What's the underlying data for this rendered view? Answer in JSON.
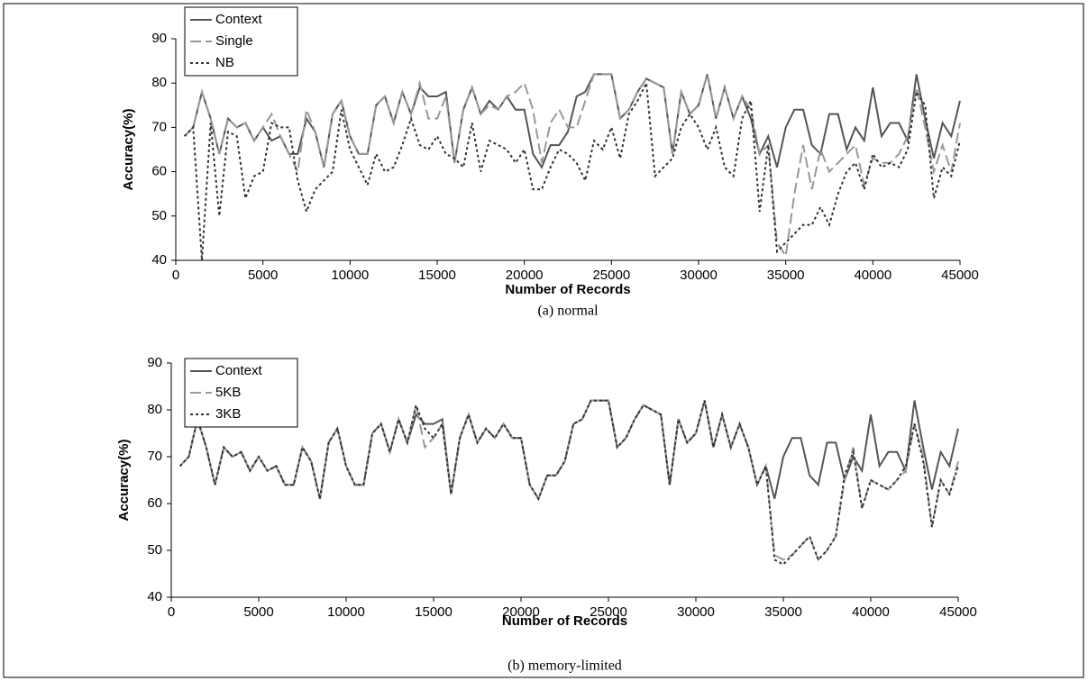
{
  "chart_data": [
    {
      "type": "line",
      "caption": "(a) normal",
      "xlabel": "Number of Records",
      "ylabel": "Accuracy(%)",
      "xlim": [
        0,
        45000
      ],
      "xticks": [
        0,
        5000,
        10000,
        15000,
        20000,
        25000,
        30000,
        35000,
        40000,
        45000
      ],
      "ylim": [
        40,
        90
      ],
      "yticks": [
        40,
        50,
        60,
        70,
        80,
        90
      ],
      "grid": false,
      "legend": "top-left",
      "x": [
        500,
        1000,
        1500,
        2000,
        2500,
        3000,
        3500,
        4000,
        4500,
        5000,
        5500,
        6000,
        6500,
        7000,
        7500,
        8000,
        8500,
        9000,
        9500,
        10000,
        10500,
        11000,
        11500,
        12000,
        12500,
        13000,
        13500,
        14000,
        14500,
        15000,
        15500,
        16000,
        16500,
        17000,
        17500,
        18000,
        18500,
        19000,
        19500,
        20000,
        20500,
        21000,
        21500,
        22000,
        22500,
        23000,
        23500,
        24000,
        24500,
        25000,
        25500,
        26000,
        26500,
        27000,
        27500,
        28000,
        28500,
        29000,
        29500,
        30000,
        30500,
        31000,
        31500,
        32000,
        32500,
        33000,
        33500,
        34000,
        34500,
        35000,
        35500,
        36000,
        36500,
        37000,
        37500,
        38000,
        38500,
        39000,
        39500,
        40000,
        40500,
        41000,
        41500,
        42000,
        42500,
        43000,
        43500,
        44000,
        44500,
        45000
      ],
      "series": [
        {
          "name": "Context",
          "color": "#555555",
          "style": "solid",
          "values": [
            68,
            70,
            78,
            72,
            64,
            72,
            70,
            71,
            67,
            70,
            67,
            68,
            64,
            64,
            72,
            69,
            61,
            73,
            76,
            68,
            64,
            64,
            75,
            77,
            71,
            78,
            73,
            79,
            77,
            77,
            78,
            62,
            74,
            79,
            73,
            76,
            74,
            77,
            74,
            74,
            64,
            61,
            66,
            66,
            69,
            77,
            78,
            82,
            82,
            82,
            72,
            74,
            78,
            81,
            80,
            79,
            64,
            78,
            73,
            75,
            82,
            72,
            79,
            72,
            77,
            72,
            64,
            68,
            61,
            70,
            74,
            74,
            66,
            64,
            73,
            73,
            65,
            70,
            67,
            79,
            68,
            71,
            71,
            67,
            82,
            72,
            63,
            71,
            68,
            76
          ]
        },
        {
          "name": "Single",
          "color": "#999999",
          "style": "dashed",
          "values": [
            68,
            70,
            78,
            72,
            64,
            72,
            70,
            71,
            67,
            70,
            73,
            68,
            64,
            60,
            74,
            69,
            61,
            73,
            76,
            68,
            64,
            64,
            75,
            77,
            71,
            78,
            73,
            80,
            72,
            72,
            77,
            62,
            74,
            79,
            73,
            75,
            74,
            77,
            78,
            80,
            74,
            62,
            71,
            74,
            70,
            70,
            76,
            82,
            82,
            82,
            72,
            74,
            78,
            81,
            80,
            79,
            64,
            78,
            73,
            75,
            82,
            72,
            79,
            72,
            77,
            74,
            64,
            66,
            44,
            41,
            55,
            66,
            56,
            65,
            60,
            62,
            64,
            66,
            57,
            63,
            62,
            62,
            64,
            68,
            79,
            70,
            60,
            66,
            60,
            71
          ]
        },
        {
          "name": "NB",
          "color": "#333333",
          "style": "dotted",
          "values": [
            68,
            70,
            40,
            71,
            50,
            69,
            68,
            54,
            59,
            60,
            71,
            70,
            70,
            58,
            51,
            56,
            58,
            60,
            74,
            65,
            61,
            57,
            64,
            60,
            61,
            66,
            72,
            66,
            65,
            68,
            64,
            63,
            61,
            71,
            60,
            67,
            66,
            65,
            62,
            65,
            56,
            56,
            61,
            65,
            64,
            62,
            58,
            67,
            65,
            70,
            63,
            73,
            76,
            80,
            59,
            61,
            63,
            70,
            73,
            70,
            65,
            70,
            61,
            59,
            72,
            76,
            51,
            66,
            42,
            44,
            46,
            48,
            48,
            52,
            48,
            55,
            60,
            62,
            56,
            64,
            61,
            62,
            61,
            65,
            78,
            75,
            54,
            61,
            59,
            67
          ]
        }
      ]
    },
    {
      "type": "line",
      "caption": "(b) memory-limited",
      "xlabel": "Number of Records",
      "ylabel": "Accuracy(%)",
      "xlim": [
        0,
        45000
      ],
      "xticks": [
        0,
        5000,
        10000,
        15000,
        20000,
        25000,
        30000,
        35000,
        40000,
        45000
      ],
      "ylim": [
        40,
        90
      ],
      "yticks": [
        40,
        50,
        60,
        70,
        80,
        90
      ],
      "grid": false,
      "legend": "top-left",
      "x": [
        500,
        1000,
        1500,
        2000,
        2500,
        3000,
        3500,
        4000,
        4500,
        5000,
        5500,
        6000,
        6500,
        7000,
        7500,
        8000,
        8500,
        9000,
        9500,
        10000,
        10500,
        11000,
        11500,
        12000,
        12500,
        13000,
        13500,
        14000,
        14500,
        15000,
        15500,
        16000,
        16500,
        17000,
        17500,
        18000,
        18500,
        19000,
        19500,
        20000,
        20500,
        21000,
        21500,
        22000,
        22500,
        23000,
        23500,
        24000,
        24500,
        25000,
        25500,
        26000,
        26500,
        27000,
        27500,
        28000,
        28500,
        29000,
        29500,
        30000,
        30500,
        31000,
        31500,
        32000,
        32500,
        33000,
        33500,
        34000,
        34500,
        35000,
        35500,
        36000,
        36500,
        37000,
        37500,
        38000,
        38500,
        39000,
        39500,
        40000,
        40500,
        41000,
        41500,
        42000,
        42500,
        43000,
        43500,
        44000,
        44500,
        45000
      ],
      "series": [
        {
          "name": "Context",
          "color": "#555555",
          "style": "solid",
          "values": [
            68,
            70,
            78,
            72,
            64,
            72,
            70,
            71,
            67,
            70,
            67,
            68,
            64,
            64,
            72,
            69,
            61,
            73,
            76,
            68,
            64,
            64,
            75,
            77,
            71,
            78,
            73,
            79,
            77,
            77,
            78,
            62,
            74,
            79,
            73,
            76,
            74,
            77,
            74,
            74,
            64,
            61,
            66,
            66,
            69,
            77,
            78,
            82,
            82,
            82,
            72,
            74,
            78,
            81,
            80,
            79,
            64,
            78,
            73,
            75,
            82,
            72,
            79,
            72,
            77,
            72,
            64,
            68,
            61,
            70,
            74,
            74,
            66,
            64,
            73,
            73,
            65,
            70,
            67,
            79,
            68,
            71,
            71,
            67,
            82,
            72,
            63,
            71,
            68,
            76
          ]
        },
        {
          "name": "5KB",
          "color": "#999999",
          "style": "dashed",
          "values": [
            68,
            70,
            78,
            72,
            64,
            72,
            70,
            71,
            67,
            70,
            67,
            68,
            64,
            64,
            72,
            69,
            61,
            73,
            76,
            68,
            64,
            64,
            75,
            77,
            71,
            78,
            73,
            81,
            72,
            74,
            77,
            62,
            74,
            79,
            73,
            76,
            74,
            77,
            74,
            74,
            64,
            61,
            66,
            66,
            69,
            77,
            78,
            82,
            82,
            82,
            72,
            74,
            78,
            81,
            80,
            79,
            64,
            78,
            73,
            75,
            82,
            72,
            79,
            72,
            77,
            72,
            64,
            68,
            49,
            48,
            49,
            51,
            53,
            48,
            50,
            53,
            65,
            72,
            59,
            65,
            64,
            63,
            65,
            67,
            77,
            70,
            55,
            65,
            62,
            69
          ]
        },
        {
          "name": "3KB",
          "color": "#333333",
          "style": "dotted",
          "values": [
            68,
            70,
            78,
            72,
            64,
            72,
            70,
            71,
            67,
            70,
            67,
            68,
            64,
            64,
            72,
            69,
            61,
            73,
            76,
            68,
            64,
            64,
            75,
            77,
            71,
            78,
            73,
            81,
            76,
            74,
            77,
            62,
            74,
            79,
            73,
            76,
            74,
            77,
            74,
            74,
            64,
            61,
            66,
            66,
            69,
            77,
            78,
            82,
            82,
            82,
            72,
            74,
            78,
            81,
            80,
            79,
            64,
            78,
            73,
            75,
            82,
            72,
            79,
            72,
            77,
            72,
            64,
            68,
            48,
            47,
            49,
            51,
            53,
            48,
            50,
            53,
            66,
            71,
            59,
            65,
            64,
            63,
            65,
            68,
            77,
            69,
            55,
            65,
            62,
            68
          ]
        }
      ]
    }
  ]
}
